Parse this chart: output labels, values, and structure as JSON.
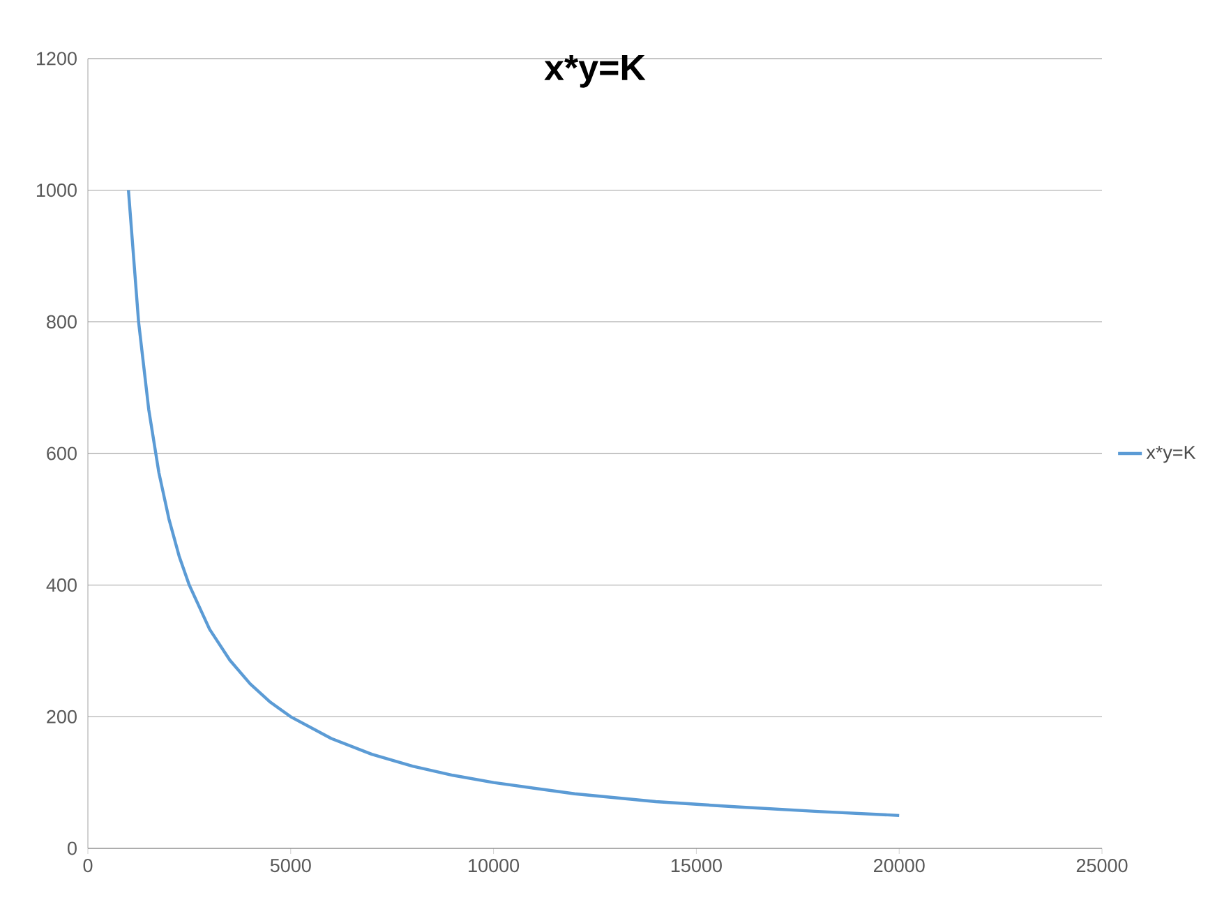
{
  "chart_data": {
    "type": "line",
    "title": "x*y=K",
    "series": [
      {
        "name": "x*y=K",
        "color": "#5b9bd5",
        "x": [
          1000,
          1250,
          1500,
          1750,
          2000,
          2250,
          2500,
          3000,
          3500,
          4000,
          4500,
          5000,
          6000,
          7000,
          8000,
          9000,
          10000,
          12000,
          14000,
          16000,
          18000,
          20000
        ],
        "values": [
          1000,
          800,
          667,
          571,
          500,
          444,
          400,
          333,
          286,
          250,
          222,
          200,
          167,
          143,
          125,
          111,
          100,
          83,
          71,
          63,
          56,
          50
        ]
      }
    ],
    "xlim": [
      0,
      25000
    ],
    "xticks": [
      0,
      5000,
      10000,
      15000,
      20000,
      25000
    ],
    "ylim": [
      0,
      1200
    ],
    "yticks": [
      0,
      200,
      400,
      600,
      800,
      1000,
      1200
    ],
    "grid": "y",
    "legend": "right",
    "marker": "none",
    "line_style": "solid"
  }
}
